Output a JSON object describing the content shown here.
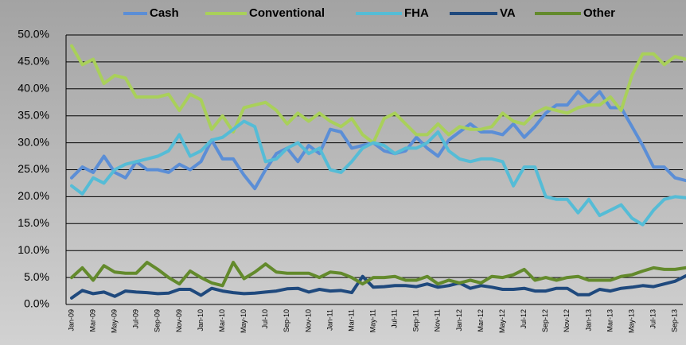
{
  "chart_data": {
    "type": "line",
    "categories": [
      "Jan-09",
      null,
      "Mar-09",
      null,
      "May-09",
      null,
      "Jul-09",
      null,
      "Sep-09",
      null,
      "Nov-09",
      null,
      "Jan-10",
      null,
      "Mar-10",
      null,
      "May-10",
      null,
      "Jul-10",
      null,
      "Sep-10",
      null,
      "Nov-10",
      null,
      "Jan-11",
      null,
      "Mar-11",
      null,
      "May-11",
      null,
      "Jul-11",
      null,
      "Sep-11",
      null,
      "Nov-11",
      null,
      "Jan-12",
      null,
      "Mar-12",
      null,
      "May-12",
      null,
      "Jul-12",
      null,
      "Sep-12",
      null,
      "Nov-12",
      null,
      "Jan-13",
      null,
      "Mar-13",
      null,
      "May-13",
      null,
      "Jul-13",
      null,
      "Sep-13",
      null
    ],
    "series": [
      {
        "name": "Cash",
        "color": "#5b8ed6",
        "values": [
          23.5,
          25.5,
          24.5,
          27.5,
          24.5,
          23.5,
          26.5,
          25,
          25,
          24.5,
          26,
          25,
          26.5,
          30.5,
          27,
          27,
          24,
          21.5,
          25,
          28,
          29,
          26.5,
          29.5,
          28,
          32.5,
          32,
          29,
          29.5,
          30,
          28.5,
          28,
          28.5,
          31,
          29,
          27.5,
          30.5,
          32,
          33.5,
          32,
          32,
          31.5,
          33.5,
          31,
          33,
          35.5,
          37,
          37,
          39.5,
          37.5,
          39.5,
          36.5,
          36.5,
          33,
          29.5,
          25.5,
          25.5,
          23.5,
          23
        ]
      },
      {
        "name": "Conventional",
        "color": "#a9d05a",
        "values": [
          48,
          44.5,
          45.5,
          41,
          42.5,
          42,
          38.5,
          38.5,
          38.5,
          39,
          36,
          39,
          38,
          32.5,
          35,
          32,
          36.5,
          37,
          37.5,
          36,
          33.5,
          35.5,
          34,
          35.5,
          34,
          33,
          34.5,
          31.5,
          30,
          34.5,
          35.5,
          33.5,
          31.5,
          31.5,
          33.5,
          31.5,
          33,
          32.5,
          32.5,
          33,
          35.5,
          34,
          33.5,
          35.5,
          36.5,
          36,
          35.5,
          36.5,
          37,
          37,
          38.5,
          36,
          42.5,
          46.5,
          46.5,
          44.5,
          46,
          45.5
        ]
      },
      {
        "name": "FHA",
        "color": "#55bcd6",
        "values": [
          22,
          20.5,
          23.5,
          22.5,
          25,
          26,
          26.5,
          27,
          27.5,
          28.5,
          31.5,
          27.5,
          28.5,
          30.5,
          31,
          32.5,
          34,
          33,
          26.5,
          27,
          29,
          30,
          28,
          29,
          25,
          24.5,
          26.5,
          29,
          30,
          29.5,
          28,
          29,
          29,
          30,
          32,
          28.5,
          27,
          26.5,
          27,
          27,
          26.5,
          22,
          25.5,
          25.5,
          20,
          19.5,
          19.5,
          17,
          19.5,
          16.5,
          17.5,
          18.5,
          16,
          14.8,
          17.5,
          19.5,
          20,
          19.8
        ]
      },
      {
        "name": "VA",
        "color": "#1f497d",
        "values": [
          1.2,
          2.6,
          2,
          2.3,
          1.5,
          2.5,
          2.3,
          2.2,
          2,
          2.1,
          2.8,
          2.8,
          1.7,
          3,
          2.5,
          2.2,
          2,
          2.1,
          2.3,
          2.5,
          2.9,
          3,
          2.3,
          2.8,
          2.5,
          2.6,
          2.2,
          5.2,
          3.2,
          3.3,
          3.5,
          3.5,
          3.3,
          3.8,
          3.2,
          3.5,
          4,
          3,
          3.5,
          3.2,
          2.8,
          2.8,
          3,
          2.5,
          2.5,
          3,
          3,
          1.8,
          1.8,
          2.8,
          2.5,
          3,
          3.2,
          3.5,
          3.3,
          3.8,
          4.3,
          5.3
        ]
      },
      {
        "name": "Other",
        "color": "#638a2c",
        "values": [
          5,
          6.8,
          4.5,
          7.2,
          6,
          5.8,
          5.8,
          7.8,
          6.5,
          5,
          3.8,
          6.2,
          5,
          4,
          3.5,
          7.8,
          4.8,
          6,
          7.5,
          6,
          5.8,
          5.8,
          5.8,
          5,
          6,
          5.8,
          5,
          3.8,
          5,
          5,
          5.2,
          4.5,
          4.5,
          5.2,
          3.8,
          4.5,
          4,
          4.5,
          4,
          5.2,
          5,
          5.5,
          6.5,
          4.5,
          5,
          4.5,
          5,
          5.2,
          4.5,
          4.5,
          4.5,
          5.2,
          5.5,
          6.2,
          6.8,
          6.5,
          6.5,
          6.8
        ]
      }
    ],
    "ylim": [
      0,
      50
    ],
    "yticks": [
      {
        "value": 0,
        "label": "0.0%"
      },
      {
        "value": 5,
        "label": "5.0%"
      },
      {
        "value": 10,
        "label": "10.0%"
      },
      {
        "value": 15,
        "label": "15.0%"
      },
      {
        "value": 20,
        "label": "20.0%"
      },
      {
        "value": 25,
        "label": "25.0%"
      },
      {
        "value": 30,
        "label": "30.0%"
      },
      {
        "value": 35,
        "label": "35.0%"
      },
      {
        "value": 40,
        "label": "40.0%"
      },
      {
        "value": 45,
        "label": "45.0%"
      },
      {
        "value": 50,
        "label": "50.0%"
      }
    ],
    "grid": true,
    "legend": "top"
  }
}
